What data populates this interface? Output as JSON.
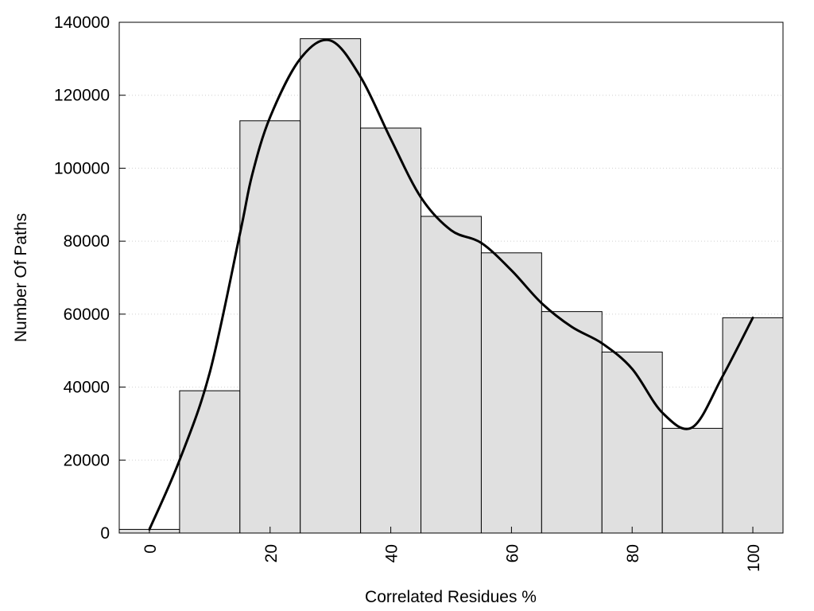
{
  "chart_data": {
    "type": "bar",
    "xlabel": "Correlated Residues %",
    "ylabel": "Number Of Paths",
    "bin_width": 10,
    "bins": [
      {
        "center": 0,
        "value": 1000
      },
      {
        "center": 10,
        "value": 39000
      },
      {
        "center": 20,
        "value": 113000
      },
      {
        "center": 30,
        "value": 135500
      },
      {
        "center": 40,
        "value": 111000
      },
      {
        "center": 50,
        "value": 86800
      },
      {
        "center": 60,
        "value": 76800
      },
      {
        "center": 70,
        "value": 60700
      },
      {
        "center": 80,
        "value": 49600
      },
      {
        "center": 90,
        "value": 28700
      },
      {
        "center": 100,
        "value": 59000
      }
    ],
    "curve": {
      "x": [
        0,
        5,
        10,
        15,
        17,
        20,
        25,
        30,
        35,
        40,
        45,
        50,
        55,
        60,
        65,
        70,
        75,
        80,
        85,
        90,
        95,
        100
      ],
      "y": [
        1000,
        20000,
        44000,
        82000,
        98000,
        114000,
        130000,
        135000,
        125000,
        108000,
        92000,
        83000,
        79500,
        72000,
        63000,
        56500,
        52000,
        45000,
        33000,
        29000,
        43000,
        59000
      ]
    },
    "xlim": [
      -5,
      105
    ],
    "ylim": [
      0,
      140000
    ],
    "x_ticks": [
      "0",
      "20",
      "40",
      "60",
      "80",
      "100"
    ],
    "y_ticks": [
      "0",
      "20000",
      "40000",
      "60000",
      "80000",
      "100000",
      "120000",
      "140000"
    ],
    "grid": "horizontal dotted",
    "x_tick_rotation": "vertical"
  }
}
